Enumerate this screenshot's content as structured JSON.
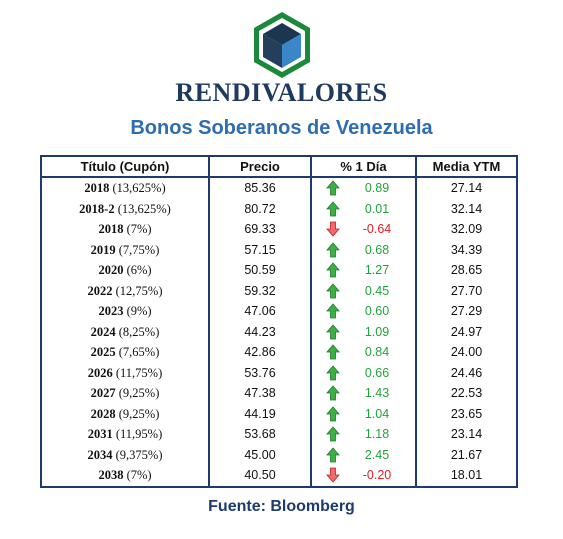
{
  "brand": "RENDIVALORES",
  "subtitle": "Bonos Soberanos de Venezuela",
  "source": "Fuente: Bloomberg",
  "colors": {
    "up": "#22a33a",
    "down": "#e02020",
    "border": "#1f3a6e",
    "subtitle": "#2e6db0"
  },
  "headers": {
    "title": "Título (Cupón)",
    "price": "Precio",
    "change": "% 1 Día",
    "ytm": "Media YTM"
  },
  "rows": [
    {
      "year": "2018",
      "coupon": "(13,625%)",
      "price": "85.36",
      "dir": "up",
      "change": "0.89",
      "ytm": "27.14"
    },
    {
      "year": "2018-2",
      "coupon": "(13,625%)",
      "price": "80.72",
      "dir": "up",
      "change": "0.01",
      "ytm": "32.14"
    },
    {
      "year": "2018",
      "coupon": "(7%)",
      "price": "69.33",
      "dir": "down",
      "change": "-0.64",
      "ytm": "32.09"
    },
    {
      "year": "2019",
      "coupon": "(7,75%)",
      "price": "57.15",
      "dir": "up",
      "change": "0.68",
      "ytm": "34.39"
    },
    {
      "year": "2020",
      "coupon": "(6%)",
      "price": "50.59",
      "dir": "up",
      "change": "1.27",
      "ytm": "28.65"
    },
    {
      "year": "2022",
      "coupon": "(12,75%)",
      "price": "59.32",
      "dir": "up",
      "change": "0.45",
      "ytm": "27.70"
    },
    {
      "year": "2023",
      "coupon": "(9%)",
      "price": "47.06",
      "dir": "up",
      "change": "0.60",
      "ytm": "27.29"
    },
    {
      "year": "2024",
      "coupon": "(8,25%)",
      "price": "44.23",
      "dir": "up",
      "change": "1.09",
      "ytm": "24.97"
    },
    {
      "year": "2025",
      "coupon": "(7,65%)",
      "price": "42.86",
      "dir": "up",
      "change": "0.84",
      "ytm": "24.00"
    },
    {
      "year": "2026",
      "coupon": "(11,75%)",
      "price": "53.76",
      "dir": "up",
      "change": "0.66",
      "ytm": "24.46"
    },
    {
      "year": "2027",
      "coupon": "(9,25%)",
      "price": "47.38",
      "dir": "up",
      "change": "1.43",
      "ytm": "22.53"
    },
    {
      "year": "2028",
      "coupon": "(9,25%)",
      "price": "44.19",
      "dir": "up",
      "change": "1.04",
      "ytm": "23.65"
    },
    {
      "year": "2031",
      "coupon": "(11,95%)",
      "price": "53.68",
      "dir": "up",
      "change": "1.18",
      "ytm": "23.14"
    },
    {
      "year": "2034",
      "coupon": "(9,375%)",
      "price": "45.00",
      "dir": "up",
      "change": "2.45",
      "ytm": "21.67"
    },
    {
      "year": "2038",
      "coupon": "(7%)",
      "price": "40.50",
      "dir": "down",
      "change": "-0.20",
      "ytm": "18.01"
    }
  ]
}
